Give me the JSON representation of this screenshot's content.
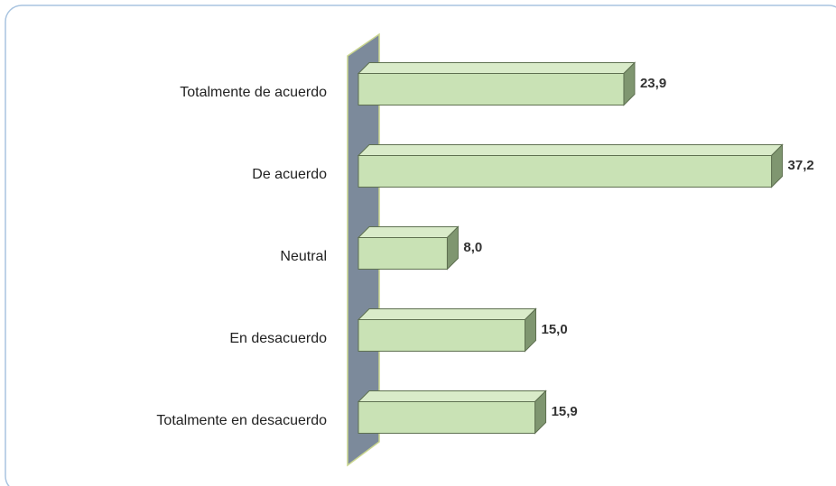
{
  "chart_data": {
    "type": "bar3d",
    "orientation": "horizontal",
    "categories": [
      "Totalmente de acuerdo",
      "De acuerdo",
      "Neutral",
      "En desacuerdo",
      "Totalmente en desacuerdo"
    ],
    "values": [
      23.9,
      37.2,
      8.0,
      15.0,
      15.9
    ],
    "value_labels": [
      "23,9",
      "37,2",
      "8,0",
      "15,0",
      "15,9"
    ],
    "color": "#c9e2b5",
    "xlim": [
      0,
      40
    ]
  }
}
